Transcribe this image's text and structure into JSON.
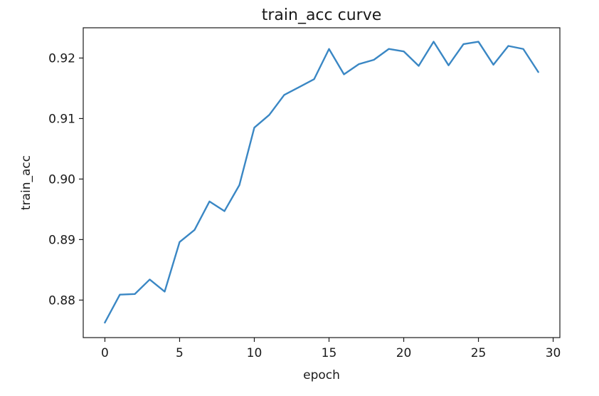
{
  "chart_data": {
    "type": "line",
    "title": "train_acc curve",
    "xlabel": "epoch",
    "ylabel": "train_acc",
    "xlim": [
      -1.45,
      30.45
    ],
    "ylim": [
      0.8738,
      0.925
    ],
    "xticks": [
      0,
      5,
      10,
      15,
      20,
      25,
      30
    ],
    "xtick_labels": [
      "0",
      "5",
      "10",
      "15",
      "20",
      "25",
      "30"
    ],
    "yticks": [
      0.88,
      0.89,
      0.9,
      0.91,
      0.92
    ],
    "ytick_labels": [
      "0.88",
      "0.89",
      "0.90",
      "0.91",
      "0.92"
    ],
    "grid": false,
    "series": [
      {
        "color": "#3a87c4",
        "x": [
          0,
          1,
          2,
          3,
          4,
          5,
          6,
          7,
          8,
          9,
          10,
          11,
          12,
          13,
          14,
          15,
          16,
          17,
          18,
          19,
          20,
          21,
          22,
          23,
          24,
          25,
          26,
          27,
          28,
          29
        ],
        "values": [
          0.8763,
          0.8809,
          0.881,
          0.8834,
          0.8814,
          0.8896,
          0.8916,
          0.8963,
          0.8947,
          0.899,
          0.9085,
          0.9106,
          0.9139,
          0.9152,
          0.9165,
          0.9215,
          0.9173,
          0.919,
          0.9197,
          0.9215,
          0.9211,
          0.9187,
          0.9227,
          0.9188,
          0.9223,
          0.9227,
          0.9189,
          0.922,
          0.9215,
          0.9177
        ]
      }
    ]
  }
}
